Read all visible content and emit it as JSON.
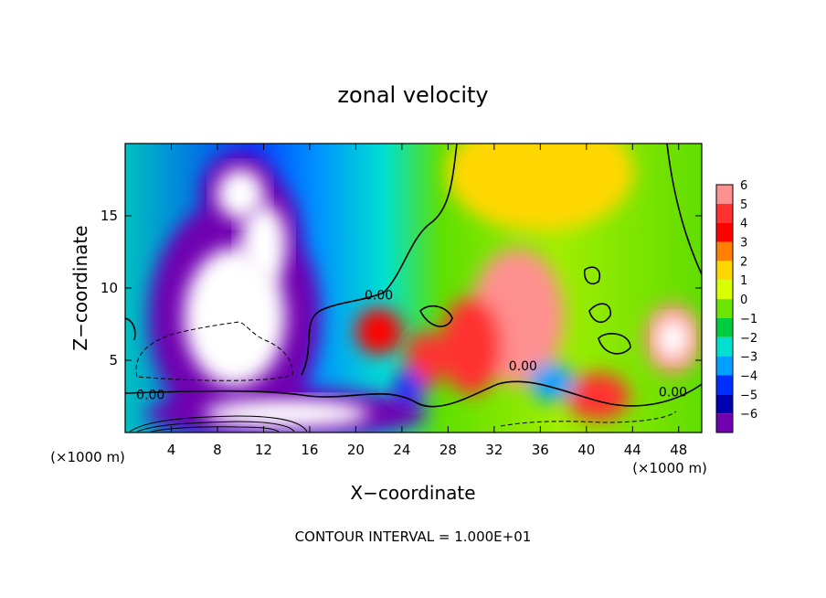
{
  "chart_data": {
    "type": "heatmap",
    "title": "zonal velocity",
    "xlabel": "X−coordinate",
    "ylabel": "Z−coordinate",
    "x_units": "(×1000 m)",
    "z_units": "(×1000 m)",
    "xlim": [
      0,
      50
    ],
    "ylim": [
      0,
      20
    ],
    "x_ticks": [
      4,
      8,
      12,
      16,
      20,
      24,
      28,
      32,
      36,
      40,
      44,
      48
    ],
    "y_ticks": [
      5,
      10,
      15
    ],
    "footer": "CONTOUR INTERVAL = 1.000E+01",
    "colorbar": {
      "levels": [
        6,
        5,
        4,
        3,
        2,
        1,
        0,
        -1,
        -2,
        -3,
        -4,
        -5,
        -6
      ],
      "labels": [
        "6",
        "5",
        "4",
        "3",
        "2",
        "1",
        "0",
        "−1",
        "−2",
        "−3",
        "−4",
        "−5",
        "−6"
      ],
      "colors": [
        "#ff9090",
        "#ff3030",
        "#ff0000",
        "#ff7f00",
        "#ffd700",
        "#d8ff00",
        "#6ce600",
        "#00cc40",
        "#00e0d0",
        "#00a0ff",
        "#0030ff",
        "#0000b0",
        "#7000b0"
      ]
    },
    "contour_labels": [
      {
        "text": "0.00",
        "x": 22,
        "z": 9.2
      },
      {
        "text": "0.00",
        "x": 2.2,
        "z": 2.3
      },
      {
        "text": "0.00",
        "x": 34.5,
        "z": 4.3
      },
      {
        "text": "0.00",
        "x": 47.5,
        "z": 2.5
      }
    ],
    "features": [
      {
        "kind": "blob",
        "x": 10,
        "z": 16.5,
        "rx": 2.6,
        "rz": 2.2,
        "value": -7
      },
      {
        "kind": "blob",
        "x": 9.5,
        "z": 8,
        "rx": 5.5,
        "rz": 6,
        "value": -7
      },
      {
        "kind": "blob",
        "x": 12,
        "z": 13,
        "rx": 2.5,
        "rz": 3.5,
        "value": -7
      },
      {
        "kind": "blob",
        "x": 34,
        "z": 8,
        "rx": 3,
        "rz": 3.5,
        "value": 6
      },
      {
        "kind": "blob",
        "x": 30,
        "z": 6,
        "rx": 2,
        "rz": 2.5,
        "value": 5
      },
      {
        "kind": "blob",
        "x": 22,
        "z": 7,
        "rx": 1.5,
        "rz": 1.2,
        "value": 4
      },
      {
        "kind": "blob",
        "x": 26,
        "z": 5,
        "rx": 1.2,
        "rz": 1.5,
        "value": 5
      },
      {
        "kind": "blob",
        "x": 47.5,
        "z": 6.5,
        "rx": 1.8,
        "rz": 1.8,
        "value": 7
      },
      {
        "kind": "blob",
        "x": 41,
        "z": 2.5,
        "rx": 2,
        "rz": 1.2,
        "value": 5
      },
      {
        "kind": "blob",
        "x": 24.5,
        "z": 3,
        "rx": 1,
        "rz": 1,
        "value": -4
      },
      {
        "kind": "blob",
        "x": 37,
        "z": 3.5,
        "rx": 1.5,
        "rz": 1,
        "value": -3
      },
      {
        "kind": "blob",
        "x": 36,
        "z": 18,
        "rx": 6,
        "rz": 3,
        "value": 2
      },
      {
        "kind": "blob",
        "x": 14,
        "z": 1.3,
        "rx": 9,
        "rz": 1.3,
        "value": -7
      }
    ]
  }
}
